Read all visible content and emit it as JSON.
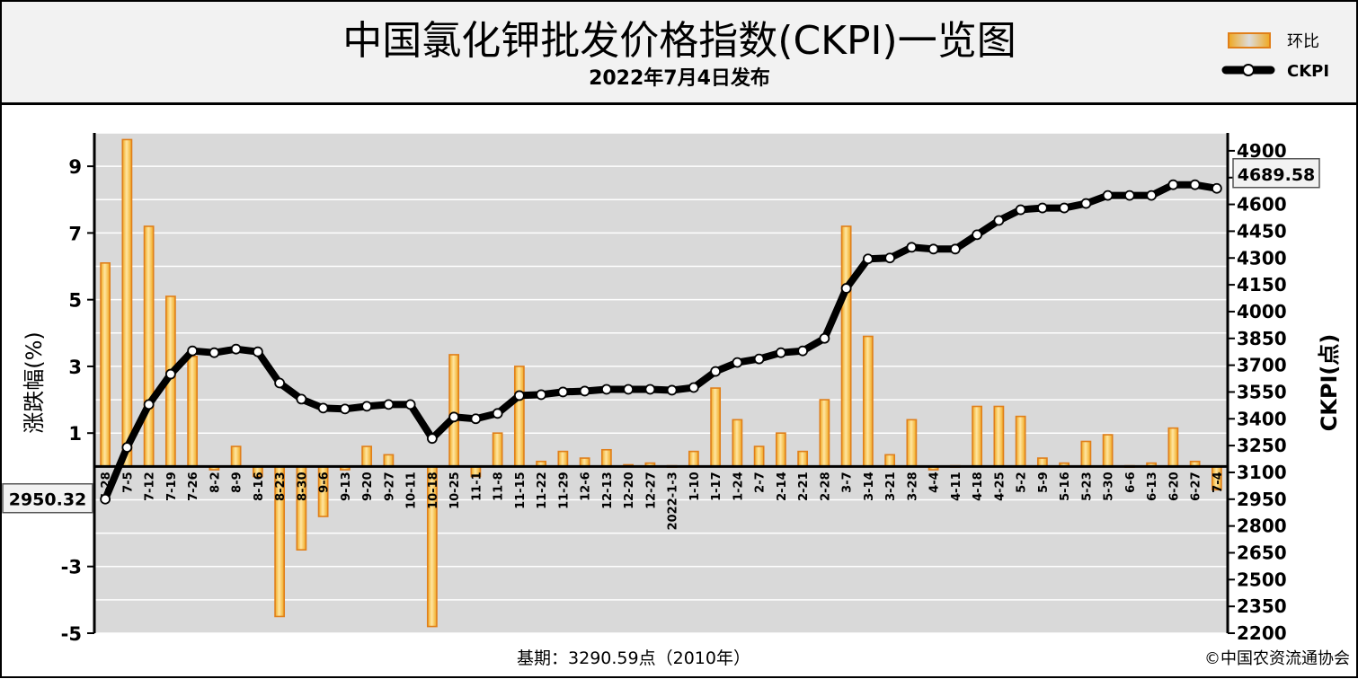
{
  "header": {
    "title": "中国氯化钾批发价格指数(CKPI)一览图",
    "subtitle": "2022年7月4日发布"
  },
  "footer": {
    "base_period": "基期：3290.59点（2010年）",
    "copyright": "©中国农资流通协会"
  },
  "colors": {
    "bar_fill": "#f5c342",
    "bar_border": "#e07f1a",
    "line": "#000000",
    "marker_fill": "#ffffff",
    "plot_bg": "#d9d9d9",
    "header_bg": "#f2f2f2"
  },
  "chart_data": {
    "type": "bar+line",
    "categories": [
      "6-28",
      "7-5",
      "7-12",
      "7-19",
      "7-26",
      "8-2",
      "8-9",
      "8-16",
      "8-23",
      "8-30",
      "9-6",
      "9-13",
      "9-20",
      "9-27",
      "10-11",
      "10-18",
      "10-25",
      "11-1",
      "11-8",
      "11-15",
      "11-22",
      "11-29",
      "12-6",
      "12-13",
      "12-20",
      "12-27",
      "2022-1-3",
      "1-10",
      "1-17",
      "1-24",
      "2-7",
      "2-14",
      "2-21",
      "2-28",
      "3-7",
      "3-14",
      "3-21",
      "3-28",
      "4-4",
      "4-11",
      "4-18",
      "4-25",
      "5-2",
      "5-9",
      "5-16",
      "5-23",
      "5-30",
      "6-6",
      "6-13",
      "6-20",
      "6-27",
      "7-4"
    ],
    "series": [
      {
        "name": "环比",
        "axis": "left",
        "type": "bar",
        "values": [
          6.1,
          9.8,
          7.2,
          5.1,
          3.3,
          -0.1,
          0.6,
          -0.3,
          -4.5,
          -2.5,
          -1.5,
          -0.1,
          0.6,
          0.35,
          0,
          -4.8,
          3.35,
          -0.3,
          1.0,
          3.0,
          0.15,
          0.45,
          0.25,
          0.5,
          0.05,
          0.1,
          0.02,
          0.45,
          2.35,
          1.4,
          0.6,
          1.0,
          0.45,
          2.0,
          7.2,
          3.9,
          0.35,
          1.4,
          -0.1,
          0.02,
          1.8,
          1.8,
          1.5,
          0.25,
          0.1,
          0.75,
          0.95,
          0.02,
          0.1,
          1.15,
          0.15,
          -0.7
        ]
      },
      {
        "name": "CKPI",
        "axis": "right",
        "type": "line",
        "values": [
          2950.32,
          3240,
          3480,
          3650,
          3780,
          3770,
          3790,
          3775,
          3600,
          3510,
          3460,
          3455,
          3470,
          3480,
          3480,
          3290,
          3410,
          3400,
          3430,
          3530,
          3535,
          3550,
          3555,
          3565,
          3565,
          3565,
          3560,
          3575,
          3665,
          3715,
          3735,
          3770,
          3780,
          3850,
          4130,
          4295,
          4300,
          4360,
          4350,
          4350,
          4430,
          4510,
          4570,
          4580,
          4580,
          4605,
          4650,
          4650,
          4650,
          4710,
          4710,
          4689.58
        ]
      }
    ],
    "callouts": {
      "first": "2950.32",
      "last": "4689.58"
    },
    "left_axis": {
      "label": "涨跌幅(%)",
      "range": [
        -5,
        10
      ],
      "ticks": [
        -5,
        -3,
        -1,
        1,
        3,
        5,
        7,
        9
      ],
      "tick_labels": [
        "-5",
        "-3",
        "",
        "1",
        "3",
        "5",
        "7",
        "9"
      ]
    },
    "right_axis": {
      "label": "CKPI(点)",
      "range": [
        2200,
        5000
      ],
      "ticks": [
        2200,
        2350,
        2500,
        2650,
        2800,
        2950,
        3100,
        3250,
        3400,
        3550,
        3700,
        3850,
        4000,
        4150,
        4300,
        4450,
        4600,
        4750,
        4900
      ]
    },
    "grid": true,
    "legend": {
      "position": "top-right",
      "entries": [
        {
          "name": "环比",
          "kind": "bar"
        },
        {
          "name": "CKPI",
          "kind": "line"
        }
      ]
    }
  }
}
